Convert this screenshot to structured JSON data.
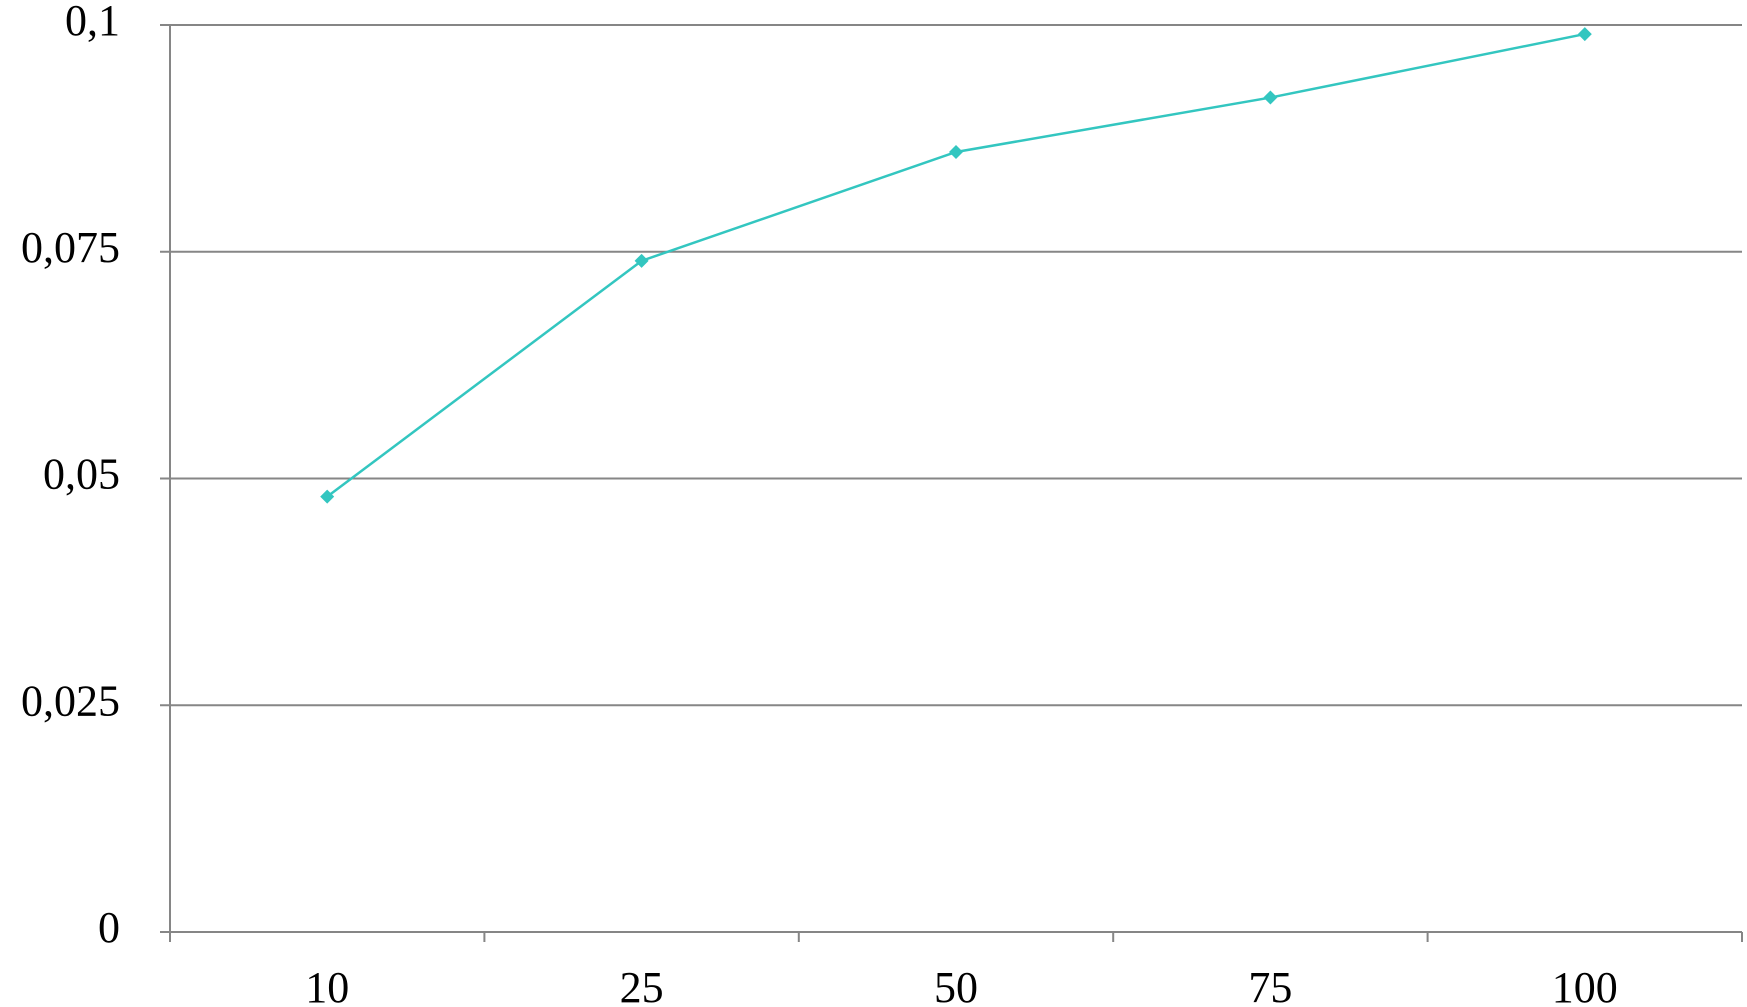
{
  "chart_data": {
    "type": "line",
    "categories": [
      "10",
      "25",
      "50",
      "75",
      "100"
    ],
    "series": [
      {
        "color": "#33c6c0",
        "values": [
          0.048,
          0.074,
          0.086,
          0.092,
          0.099
        ]
      }
    ],
    "ylim": [
      0,
      0.1
    ],
    "yticks": [
      0,
      {
        "value": 0.025,
        "label": "0,025"
      },
      {
        "value": 0.05,
        "label": "0,05"
      },
      {
        "value": 0.075,
        "label": "0,075"
      },
      {
        "value": 0.1,
        "label": "0,1"
      }
    ],
    "grid": true
  }
}
